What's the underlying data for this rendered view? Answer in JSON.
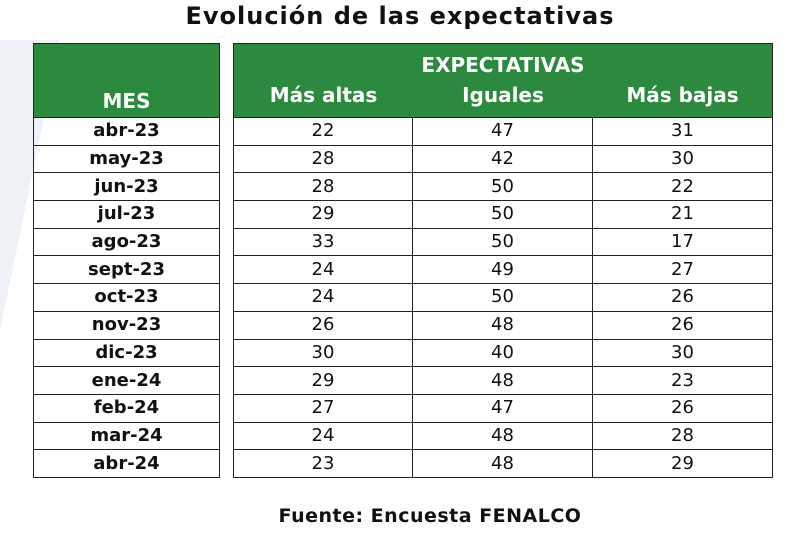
{
  "title": "Evolución de las expectativas",
  "source": "Fuente: Encuesta FENALCO",
  "colors": {
    "header_green": "#2b8a3e",
    "header_text": "#ffffff"
  },
  "chart_data": {
    "type": "table",
    "title": "Evolución de las expectativas",
    "group_header": "EXPECTATIVAS",
    "columns": [
      "MES",
      "Más altas",
      "Iguales",
      "Más bajas"
    ],
    "rows": [
      [
        "abr-23",
        22,
        47,
        31
      ],
      [
        "may-23",
        28,
        42,
        30
      ],
      [
        "jun-23",
        28,
        50,
        22
      ],
      [
        "jul-23",
        29,
        50,
        21
      ],
      [
        "ago-23",
        33,
        50,
        17
      ],
      [
        "sept-23",
        24,
        49,
        27
      ],
      [
        "oct-23",
        24,
        50,
        26
      ],
      [
        "nov-23",
        26,
        48,
        26
      ],
      [
        "dic-23",
        30,
        40,
        30
      ],
      [
        "ene-24",
        29,
        48,
        23
      ],
      [
        "feb-24",
        27,
        47,
        26
      ],
      [
        "mar-24",
        24,
        48,
        28
      ],
      [
        "abr-24",
        23,
        48,
        29
      ]
    ]
  }
}
